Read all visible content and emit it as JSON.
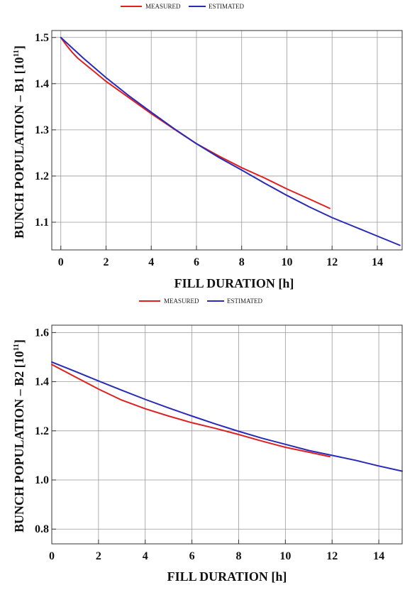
{
  "colors": {
    "measured": "#e02020",
    "estimated": "#2a2ab8"
  },
  "chart_data": [
    {
      "type": "line",
      "legend": {
        "placement": "top-center",
        "entries": [
          "MEASURED",
          "ESTIMATED"
        ]
      },
      "xlabel": "FILL DURATION [h]",
      "ylabel_main": "BUNCH POPULATION – B1 [10",
      "ylabel_sup": "11",
      "ylabel_end": "]",
      "xlim": [
        -0.4,
        15.1
      ],
      "ylim": [
        1.04,
        1.515
      ],
      "xticks": [
        "0",
        "2",
        "4",
        "6",
        "8",
        "10",
        "12",
        "14"
      ],
      "yticks": [
        "1.1",
        "1.2",
        "1.3",
        "1.4",
        "1.5"
      ],
      "grid": true,
      "series": [
        {
          "name": "MEASURED",
          "x": [
            0,
            0.25,
            0.5,
            0.75,
            1,
            1.5,
            2,
            3,
            4,
            5,
            6,
            7,
            8,
            9,
            10,
            11,
            11.9
          ],
          "y": [
            1.5,
            1.483,
            1.468,
            1.455,
            1.445,
            1.425,
            1.405,
            1.37,
            1.335,
            1.302,
            1.27,
            1.243,
            1.218,
            1.196,
            1.172,
            1.15,
            1.13
          ]
        },
        {
          "name": "ESTIMATED",
          "x": [
            0,
            1,
            2,
            3,
            4,
            5,
            6,
            7,
            8,
            9,
            10,
            11,
            12,
            13,
            14,
            15
          ],
          "y": [
            1.5,
            1.455,
            1.413,
            1.374,
            1.338,
            1.303,
            1.27,
            1.24,
            1.213,
            1.185,
            1.158,
            1.133,
            1.11,
            1.09,
            1.07,
            1.05
          ]
        }
      ]
    },
    {
      "type": "line",
      "legend": {
        "placement": "top-center",
        "entries": [
          "MEASURED",
          "ESTIMATED"
        ]
      },
      "xlabel": "FILL DURATION [h]",
      "ylabel_main": "BUNCH POPULATION – B2 [10",
      "ylabel_sup": "11",
      "ylabel_end": "]",
      "xlim": [
        0,
        15
      ],
      "ylim": [
        0.74,
        1.63
      ],
      "xticks": [
        "0",
        "2",
        "4",
        "6",
        "8",
        "10",
        "12",
        "14"
      ],
      "yticks": [
        "0.8",
        "1.0",
        "1.2",
        "1.4",
        "1.6"
      ],
      "grid": true,
      "series": [
        {
          "name": "MEASURED",
          "x": [
            0,
            1,
            2,
            3,
            4,
            5,
            6,
            7,
            8,
            9,
            10,
            11,
            11.9
          ],
          "y": [
            1.47,
            1.42,
            1.37,
            1.325,
            1.29,
            1.26,
            1.233,
            1.21,
            1.185,
            1.158,
            1.133,
            1.113,
            1.095
          ]
        },
        {
          "name": "ESTIMATED",
          "x": [
            0,
            1,
            2,
            3,
            4,
            5,
            6,
            7,
            8,
            9,
            10,
            11,
            12,
            13,
            14,
            15
          ],
          "y": [
            1.48,
            1.442,
            1.403,
            1.365,
            1.328,
            1.293,
            1.26,
            1.228,
            1.198,
            1.17,
            1.145,
            1.12,
            1.1,
            1.08,
            1.057,
            1.036
          ]
        }
      ]
    }
  ]
}
